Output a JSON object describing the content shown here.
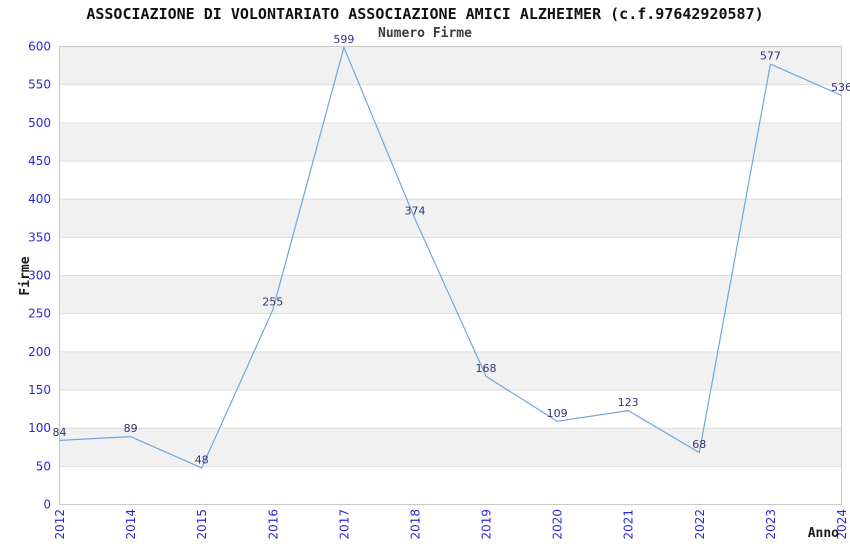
{
  "chart_data": {
    "type": "line",
    "title": "ASSOCIAZIONE DI VOLONTARIATO ASSOCIAZIONE AMICI ALZHEIMER (c.f.97642920587)",
    "subtitle": "Numero Firme",
    "xlabel": "Anno",
    "ylabel": "Firme",
    "categories": [
      "2012",
      "2014",
      "2015",
      "2016",
      "2017",
      "2018",
      "2019",
      "2020",
      "2021",
      "2022",
      "2023",
      "2024"
    ],
    "values": [
      84,
      89,
      48,
      255,
      599,
      374,
      168,
      109,
      123,
      68,
      577,
      536
    ],
    "ylim": [
      0,
      600
    ],
    "ytick_step": 50,
    "yticks": [
      0,
      50,
      100,
      150,
      200,
      250,
      300,
      350,
      400,
      450,
      500,
      550,
      600
    ],
    "grid": "alternating horizontal bands every 50 units, light gray band from 50-100, 150-200, 250-300, 350-400, 450-500, 550-600",
    "legend_position": "none",
    "data_labels_visible": true,
    "x_tick_rotation_degrees": 90,
    "colors": {
      "line": "#6fa8dc",
      "tick_label": "#2828d7",
      "data_label": "#33337a",
      "band": "#f1f1f1",
      "gridline": "#dddddd",
      "plot_border": "#c9c9c9",
      "title": "#111111",
      "subtitle": "#3c3c3c",
      "axis_label": "#1a1a1a",
      "background": "#ffffff"
    }
  }
}
